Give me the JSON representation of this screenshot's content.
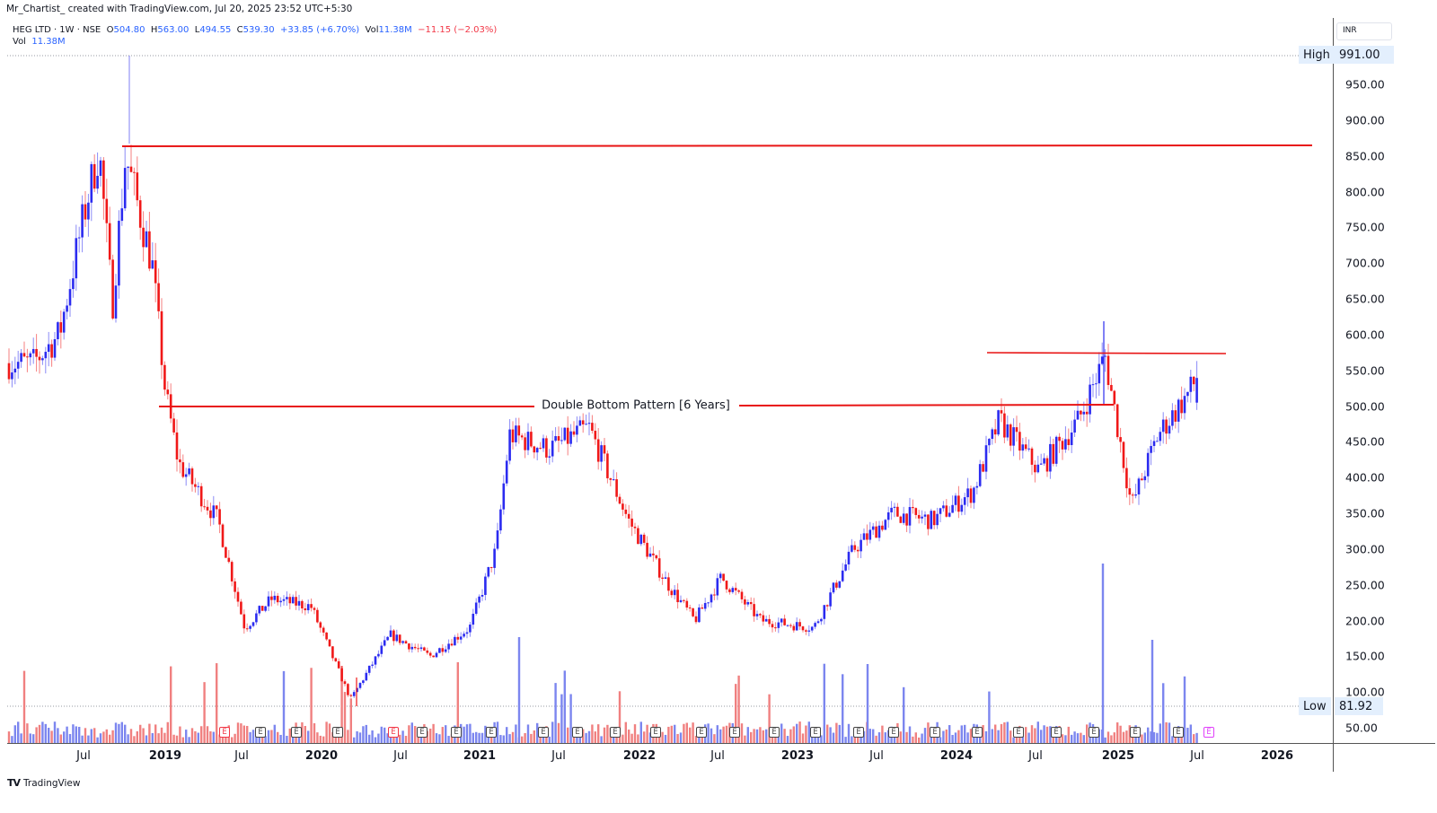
{
  "header": {
    "credit": "Mr_Chartist_ created with TradingView.com, Jul 20, 2025 23:52 UTC+5:30",
    "symbol": "HEG LTD · 1W · NSE",
    "open_label": "O",
    "open": "504.80",
    "high_label": "H",
    "high": "563.00",
    "low_label": "L",
    "low": "494.55",
    "close_label": "C",
    "close": "539.30",
    "change": "+33.85 (+6.70%)",
    "vol_label": "Vol",
    "vol": "11.38M",
    "vol_change": "−11.15 (−2.03%)",
    "vol_row_label": "Vol",
    "vol_row_value": "11.38M"
  },
  "price_axis": {
    "currency": "INR",
    "ticks": [
      "950.00",
      "900.00",
      "850.00",
      "800.00",
      "750.00",
      "700.00",
      "650.00",
      "600.00",
      "550.00",
      "500.00",
      "450.00",
      "400.00",
      "350.00",
      "300.00",
      "250.00",
      "200.00",
      "150.00",
      "100.00",
      "50.00"
    ],
    "high_label": "High",
    "high_value": "991.00",
    "low_label": "Low",
    "low_value": "81.92"
  },
  "time_axis": {
    "labels": [
      {
        "text": "Jul",
        "x": 93,
        "year": false
      },
      {
        "text": "2019",
        "x": 184,
        "year": true
      },
      {
        "text": "Jul",
        "x": 269,
        "year": false
      },
      {
        "text": "2020",
        "x": 358,
        "year": true
      },
      {
        "text": "Jul",
        "x": 446,
        "year": false
      },
      {
        "text": "2021",
        "x": 534,
        "year": true
      },
      {
        "text": "Jul",
        "x": 622,
        "year": false
      },
      {
        "text": "2022",
        "x": 712,
        "year": true
      },
      {
        "text": "Jul",
        "x": 799,
        "year": false
      },
      {
        "text": "2023",
        "x": 888,
        "year": true
      },
      {
        "text": "Jul",
        "x": 976,
        "year": false
      },
      {
        "text": "2024",
        "x": 1065,
        "year": true
      },
      {
        "text": "Jul",
        "x": 1153,
        "year": false
      },
      {
        "text": "2025",
        "x": 1245,
        "year": true
      },
      {
        "text": "Jul",
        "x": 1333,
        "year": false
      },
      {
        "text": "2026",
        "x": 1422,
        "year": true
      }
    ]
  },
  "annotation": {
    "text": "Double Bottom Pattern [6 Years]"
  },
  "earnings_markers": [
    {
      "x": 250,
      "type": "red"
    },
    {
      "x": 290,
      "type": "normal"
    },
    {
      "x": 330,
      "type": "normal"
    },
    {
      "x": 376,
      "type": "normal"
    },
    {
      "x": 438,
      "type": "red"
    },
    {
      "x": 470,
      "type": "normal"
    },
    {
      "x": 508,
      "type": "normal"
    },
    {
      "x": 547,
      "type": "normal"
    },
    {
      "x": 605,
      "type": "normal"
    },
    {
      "x": 643,
      "type": "normal"
    },
    {
      "x": 685,
      "type": "normal"
    },
    {
      "x": 730,
      "type": "normal"
    },
    {
      "x": 781,
      "type": "normal"
    },
    {
      "x": 818,
      "type": "normal"
    },
    {
      "x": 862,
      "type": "normal"
    },
    {
      "x": 908,
      "type": "normal"
    },
    {
      "x": 956,
      "type": "normal"
    },
    {
      "x": 995,
      "type": "normal"
    },
    {
      "x": 1041,
      "type": "normal"
    },
    {
      "x": 1088,
      "type": "normal"
    },
    {
      "x": 1134,
      "type": "normal"
    },
    {
      "x": 1176,
      "type": "normal"
    },
    {
      "x": 1218,
      "type": "normal"
    },
    {
      "x": 1264,
      "type": "normal"
    },
    {
      "x": 1312,
      "type": "normal"
    },
    {
      "x": 1346,
      "type": "future"
    }
  ],
  "footer": {
    "brand": "TradingView",
    "logo": "TV"
  },
  "colors": {
    "up": "#2b2bf0",
    "down": "#f01818",
    "vol_up": "#7c86ef",
    "vol_down": "#f08080",
    "trendline": "#e81515"
  },
  "chart_data": {
    "type": "candlestick",
    "title": "HEG LTD · 1W · NSE",
    "xlabel": "",
    "ylabel": "INR",
    "ylim": [
      30,
      1000
    ],
    "grid": false,
    "last_candle": {
      "open": 504.8,
      "high": 563.0,
      "low": 494.55,
      "close": 539.3,
      "volume": "11.38M"
    },
    "period_high": 991.0,
    "period_low": 81.92,
    "horizontal_lines": [
      {
        "name": "resistance-top",
        "price": 862,
        "x_start_date": "2018-10",
        "x_end_date": "2026-04"
      },
      {
        "name": "double-bottom-neckline",
        "price": 500,
        "x_start_date": "2019-01",
        "x_end_date": "2024-12",
        "label": "Double Bottom Pattern [6 Years]"
      },
      {
        "name": "resistance-recent",
        "price": 575,
        "x_start_date": "2024-04",
        "x_end_date": "2025-09"
      }
    ],
    "series_closes_approx": [
      {
        "date": "2018-03",
        "close": 560
      },
      {
        "date": "2018-05",
        "close": 600
      },
      {
        "date": "2018-07",
        "close": 780
      },
      {
        "date": "2018-08",
        "close": 860
      },
      {
        "date": "2018-09",
        "close": 640
      },
      {
        "date": "2018-10",
        "close": 850
      },
      {
        "date": "2018-12",
        "close": 700
      },
      {
        "date": "2019-01",
        "close": 520
      },
      {
        "date": "2019-02",
        "close": 420
      },
      {
        "date": "2019-05",
        "close": 340
      },
      {
        "date": "2019-07",
        "close": 190
      },
      {
        "date": "2019-09",
        "close": 230
      },
      {
        "date": "2019-12",
        "close": 220
      },
      {
        "date": "2020-03",
        "close": 90
      },
      {
        "date": "2020-06",
        "close": 180
      },
      {
        "date": "2020-09",
        "close": 150
      },
      {
        "date": "2020-12",
        "close": 190
      },
      {
        "date": "2021-02",
        "close": 300
      },
      {
        "date": "2021-03",
        "close": 460
      },
      {
        "date": "2021-06",
        "close": 440
      },
      {
        "date": "2021-09",
        "close": 470
      },
      {
        "date": "2021-12",
        "close": 340
      },
      {
        "date": "2022-03",
        "close": 250
      },
      {
        "date": "2022-05",
        "close": 200
      },
      {
        "date": "2022-07",
        "close": 260
      },
      {
        "date": "2022-10",
        "close": 200
      },
      {
        "date": "2023-02",
        "close": 190
      },
      {
        "date": "2023-05",
        "close": 300
      },
      {
        "date": "2023-08",
        "close": 350
      },
      {
        "date": "2023-11",
        "close": 340
      },
      {
        "date": "2024-02",
        "close": 380
      },
      {
        "date": "2024-04",
        "close": 480
      },
      {
        "date": "2024-07",
        "close": 410
      },
      {
        "date": "2024-10",
        "close": 480
      },
      {
        "date": "2024-12",
        "close": 570
      },
      {
        "date": "2025-02",
        "close": 360
      },
      {
        "date": "2025-04",
        "close": 460
      },
      {
        "date": "2025-06",
        "close": 510
      },
      {
        "date": "2025-07",
        "close": 539.3
      }
    ],
    "volume_spikes": [
      {
        "date": "2024-12",
        "relative": "max"
      },
      {
        "date": "2025-04",
        "relative": "high"
      },
      {
        "date": "2021-03",
        "relative": "high"
      }
    ]
  }
}
